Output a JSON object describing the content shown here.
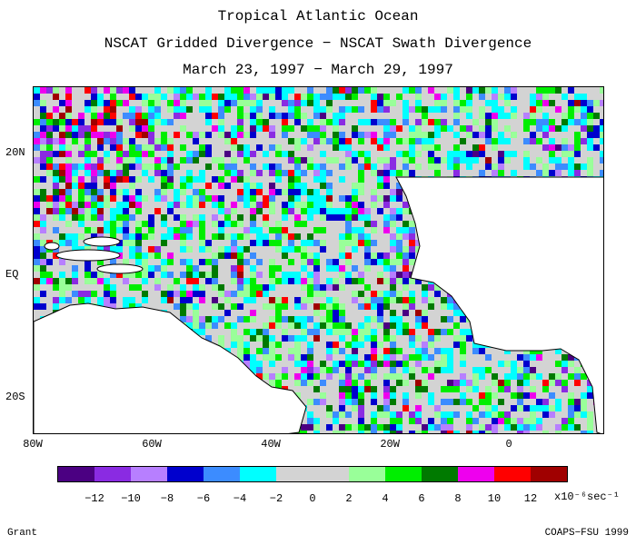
{
  "titles": {
    "line1": "Tropical Atlantic Ocean",
    "line2": "NSCAT Gridded Divergence − NSCAT Swath Divergence",
    "line3": "March 23, 1997 − March 29, 1997"
  },
  "map": {
    "lon_range": [
      -80,
      16
    ],
    "lat_range": [
      -26,
      31
    ],
    "lat_ticks": [
      {
        "value": 20,
        "label": "20N"
      },
      {
        "value": 0,
        "label": "EQ"
      },
      {
        "value": -20,
        "label": "20S"
      }
    ],
    "lon_ticks": [
      {
        "value": -80,
        "label": "80W"
      },
      {
        "value": -60,
        "label": "60W"
      },
      {
        "value": -40,
        "label": "40W"
      },
      {
        "value": -20,
        "label": "20W"
      },
      {
        "value": 0,
        "label": "0"
      }
    ]
  },
  "colorbar": {
    "colors": [
      "#4b0082",
      "#8a2be2",
      "#b77fff",
      "#0000cd",
      "#3c8cff",
      "#00ffff",
      "#d3d3d3",
      "#d3d3d3",
      "#99ff99",
      "#00ee00",
      "#007a00",
      "#ee00ee",
      "#ff0000",
      "#a00000"
    ],
    "tick_labels": [
      "−12",
      "−10",
      "−8",
      "−6",
      "−4",
      "−2",
      "0",
      "2",
      "4",
      "6",
      "8",
      "10",
      "12"
    ],
    "units": "x10⁻⁶sec⁻¹"
  },
  "footer": {
    "left": "Grant",
    "right": "COAPS−FSU 1999"
  }
}
